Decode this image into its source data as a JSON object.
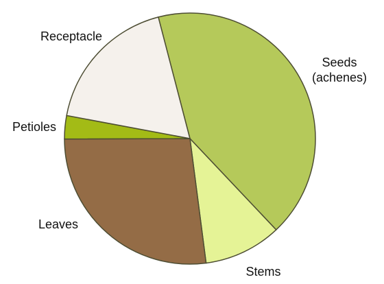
{
  "chart_data": {
    "type": "pie",
    "categories": [
      "Seeds (achenes)",
      "Stems",
      "Leaves",
      "Petioles",
      "Receptacle"
    ],
    "values": [
      42,
      10,
      27,
      3,
      18
    ],
    "colors": [
      "#b5c95a",
      "#e5f396",
      "#946c46",
      "#a3bb16",
      "#f5f1ec"
    ]
  }
}
